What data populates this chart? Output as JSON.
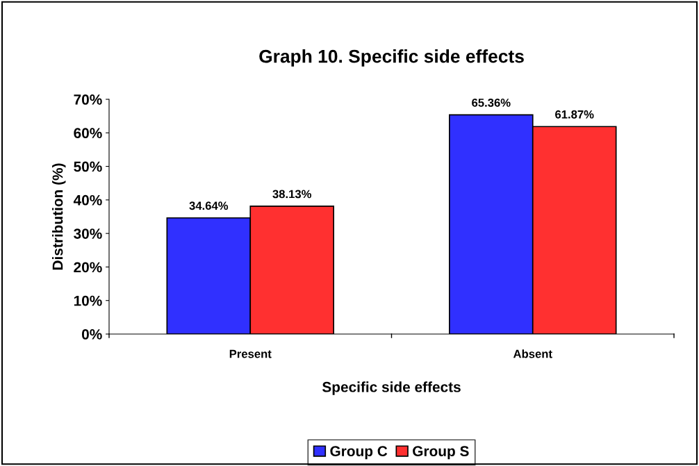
{
  "chart_data": {
    "type": "bar",
    "title": "Graph 10. Specific side effects",
    "xlabel": "Specific side effects",
    "ylabel": "Distribution (%)",
    "categories": [
      "Present",
      "Absent"
    ],
    "series": [
      {
        "name": "Group C",
        "color": "#3030ff",
        "values": [
          34.64,
          65.36
        ],
        "value_labels": [
          "34.64%",
          "65.36%"
        ]
      },
      {
        "name": "Group S",
        "color": "#ff3030",
        "values": [
          38.13,
          61.87
        ],
        "value_labels": [
          "38.13%",
          "61.87%"
        ]
      }
    ],
    "ylim": [
      0,
      70
    ],
    "yticks": [
      {
        "value": 0,
        "label": "0%"
      },
      {
        "value": 10,
        "label": "10%"
      },
      {
        "value": 20,
        "label": "20%"
      },
      {
        "value": 30,
        "label": "30%"
      },
      {
        "value": 40,
        "label": "40%"
      },
      {
        "value": 50,
        "label": "50%"
      },
      {
        "value": 60,
        "label": "60%"
      },
      {
        "value": 70,
        "label": "70%"
      }
    ],
    "grid": false,
    "legend": "bottom"
  }
}
